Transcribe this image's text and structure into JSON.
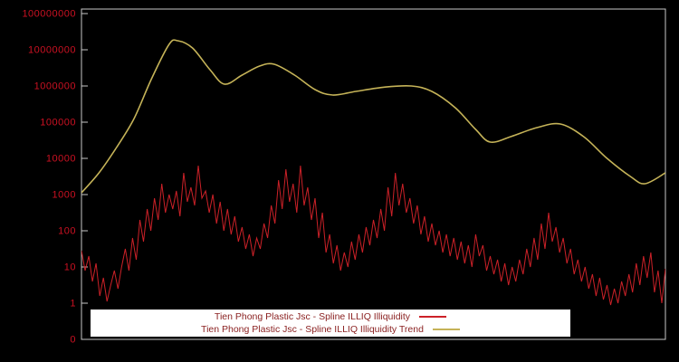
{
  "window": {
    "background": "#000000"
  },
  "chart_data": {
    "type": "line",
    "title": "",
    "y_axis": {
      "scale": "log10",
      "tick_labels": [
        "100000000",
        "10000000",
        "1000000",
        "100000",
        "10000",
        "1000",
        "100",
        "10",
        "1",
        "0"
      ],
      "tick_logs": [
        8,
        7,
        6,
        5,
        4,
        3,
        2,
        1,
        0,
        -1
      ],
      "label_color": "#cc1122",
      "axis_color": "#c8c8c8"
    },
    "x_axis": {
      "tick_labels": []
    },
    "series": [
      {
        "name": "Tien Phong Plastic Jsc - Spline ILLIQ Illiquidity",
        "color": "#cc2128",
        "style": "noisy-line",
        "x_start": 0,
        "x_end": 1,
        "log10_values": [
          1.45,
          0.9,
          1.3,
          0.6,
          1.1,
          0.2,
          0.7,
          0.05,
          0.5,
          0.9,
          0.4,
          1.0,
          1.5,
          0.9,
          1.8,
          1.2,
          2.3,
          1.7,
          2.6,
          2.0,
          2.9,
          2.3,
          3.3,
          2.5,
          3.0,
          2.6,
          3.1,
          2.4,
          3.6,
          2.8,
          3.2,
          2.7,
          3.8,
          2.9,
          3.1,
          2.5,
          3.0,
          2.2,
          2.8,
          2.0,
          2.6,
          1.9,
          2.4,
          1.7,
          2.1,
          1.5,
          1.9,
          1.3,
          1.8,
          1.5,
          2.2,
          1.8,
          2.7,
          2.2,
          3.4,
          2.6,
          3.7,
          2.8,
          3.3,
          2.5,
          3.8,
          2.7,
          3.2,
          2.3,
          2.9,
          1.8,
          2.5,
          1.4,
          1.9,
          1.1,
          1.6,
          0.9,
          1.4,
          1.0,
          1.7,
          1.2,
          1.9,
          1.4,
          2.1,
          1.6,
          2.3,
          1.8,
          2.6,
          2.0,
          3.2,
          2.4,
          3.6,
          2.7,
          3.3,
          2.5,
          2.9,
          2.2,
          2.7,
          1.9,
          2.4,
          1.7,
          2.2,
          1.6,
          2.0,
          1.4,
          1.9,
          1.3,
          1.8,
          1.2,
          1.7,
          1.1,
          1.6,
          1.0,
          1.9,
          1.3,
          1.6,
          0.9,
          1.3,
          0.8,
          1.2,
          0.6,
          1.1,
          0.5,
          1.0,
          0.6,
          1.2,
          0.8,
          1.5,
          1.0,
          1.8,
          1.2,
          2.2,
          1.5,
          2.5,
          1.7,
          2.1,
          1.4,
          1.8,
          1.1,
          1.5,
          0.8,
          1.2,
          0.6,
          1.0,
          0.4,
          0.8,
          0.2,
          0.7,
          0.1,
          0.5,
          -0.05,
          0.4,
          0.0,
          0.6,
          0.2,
          0.8,
          0.3,
          1.1,
          0.5,
          1.3,
          0.7,
          1.4,
          0.3,
          0.9,
          0.0,
          0.95
        ]
      },
      {
        "name": "Tien Phong Plastic Jsc - Spline ILLIQ Illiquidity Trend",
        "color": "#c5b358",
        "style": "smooth-line",
        "points": [
          [
            0.0,
            3.05
          ],
          [
            0.03,
            3.6
          ],
          [
            0.06,
            4.3
          ],
          [
            0.09,
            5.1
          ],
          [
            0.12,
            6.2
          ],
          [
            0.15,
            7.15
          ],
          [
            0.165,
            7.25
          ],
          [
            0.19,
            7.05
          ],
          [
            0.22,
            6.45
          ],
          [
            0.245,
            6.05
          ],
          [
            0.275,
            6.3
          ],
          [
            0.305,
            6.55
          ],
          [
            0.33,
            6.6
          ],
          [
            0.365,
            6.3
          ],
          [
            0.4,
            5.9
          ],
          [
            0.43,
            5.75
          ],
          [
            0.47,
            5.85
          ],
          [
            0.52,
            5.97
          ],
          [
            0.565,
            6.0
          ],
          [
            0.6,
            5.85
          ],
          [
            0.64,
            5.4
          ],
          [
            0.675,
            4.8
          ],
          [
            0.7,
            4.45
          ],
          [
            0.735,
            4.6
          ],
          [
            0.78,
            4.85
          ],
          [
            0.82,
            4.95
          ],
          [
            0.86,
            4.6
          ],
          [
            0.9,
            4.0
          ],
          [
            0.94,
            3.5
          ],
          [
            0.965,
            3.3
          ],
          [
            1.0,
            3.6
          ]
        ]
      }
    ]
  },
  "legend": {
    "background": "#ffffff",
    "text_color": "#8b2222",
    "items": [
      {
        "label": "Tien Phong Plastic Jsc - Spline ILLIQ Illiquidity",
        "color": "#cc2128"
      },
      {
        "label": "Tien Phong Plastic Jsc - Spline ILLIQ Illiquidity Trend",
        "color": "#c5b358"
      }
    ]
  }
}
